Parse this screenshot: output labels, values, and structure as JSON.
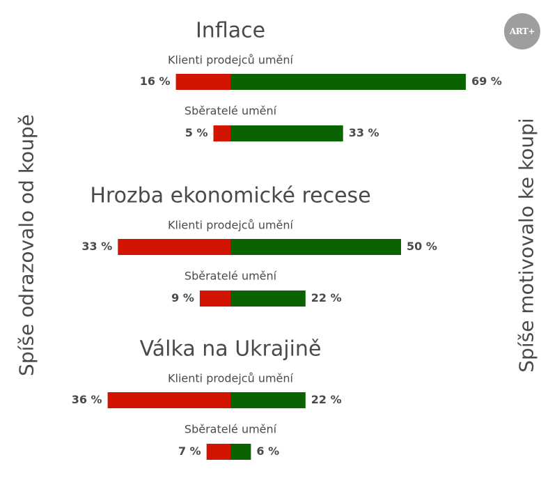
{
  "side_labels": {
    "left": "Spíše odrazovalo od koupě",
    "right": "Spíše motivovalo ke koupi"
  },
  "logo_text": "ART+",
  "colors": {
    "negative": "#d11500",
    "positive": "#0a6200",
    "text": "#4a4a4a",
    "title": "#4a4a4a"
  },
  "chart_data": {
    "type": "bar",
    "orientation": "diverging-horizontal",
    "unit": "%",
    "groups": [
      {
        "title": "Inflace",
        "bars": [
          {
            "label": "Klienti prodejců umění",
            "negative": 16,
            "positive": 69
          },
          {
            "label": "Sběratelé umění",
            "negative": 5,
            "positive": 33
          }
        ]
      },
      {
        "title": "Hrozba ekonomické recese",
        "bars": [
          {
            "label": "Klienti prodejců umění",
            "negative": 33,
            "positive": 50
          },
          {
            "label": "Sběratelé umění",
            "negative": 9,
            "positive": 22
          }
        ]
      },
      {
        "title": "Válka na Ukrajině",
        "bars": [
          {
            "label": "Klienti prodejců umění",
            "negative": 36,
            "positive": 22
          },
          {
            "label": "Sběratelé umění",
            "negative": 7,
            "positive": 6
          }
        ]
      }
    ]
  }
}
